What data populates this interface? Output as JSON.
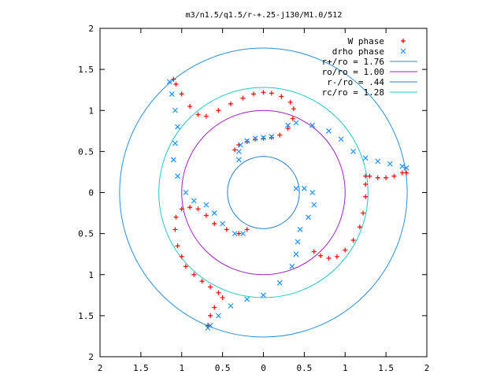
{
  "chart_data": {
    "type": "scatter",
    "title": "m3/n1.5/q1.5/r-+.25-j130/M1.0/512",
    "xlabel": "",
    "ylabel": "",
    "xlim": [
      -2,
      2
    ],
    "ylim": [
      -2,
      2
    ],
    "x_tick_labels": [
      "2",
      "1.5",
      "1",
      "0.5",
      "0",
      "0.5",
      "1",
      "1.5",
      "2"
    ],
    "x_tick_values": [
      -2,
      -1.5,
      -1,
      -0.5,
      0,
      0.5,
      1,
      1.5,
      2
    ],
    "y_tick_labels": [
      "2",
      "1.5",
      "1",
      "0.5",
      "0",
      "0.5",
      "1",
      "1.5",
      "2"
    ],
    "y_tick_values": [
      2,
      1.5,
      1,
      0.5,
      0,
      -0.5,
      -1,
      -1.5,
      -2
    ],
    "grid": false,
    "legend_position": "top-right",
    "series": [
      {
        "name": "W phase",
        "color": "#ff0000",
        "marker": "plus",
        "points": [
          [
            -0.35,
            0.52
          ],
          [
            -0.3,
            0.58
          ],
          [
            -0.2,
            0.62
          ],
          [
            -0.1,
            0.65
          ],
          [
            0.0,
            0.66
          ],
          [
            0.1,
            0.67
          ],
          [
            0.2,
            0.7
          ],
          [
            0.3,
            0.78
          ],
          [
            0.36,
            0.9
          ],
          [
            0.37,
            1.02
          ],
          [
            0.33,
            1.1
          ],
          [
            0.22,
            1.17
          ],
          [
            0.1,
            1.21
          ],
          [
            0.0,
            1.22
          ],
          [
            -0.12,
            1.2
          ],
          [
            -0.25,
            1.15
          ],
          [
            -0.4,
            1.08
          ],
          [
            -0.55,
            1.0
          ],
          [
            -0.7,
            0.93
          ],
          [
            -0.8,
            0.95
          ],
          [
            -0.9,
            1.05
          ],
          [
            -1.0,
            1.2
          ],
          [
            -1.07,
            1.32
          ],
          [
            -1.1,
            1.38
          ],
          [
            0.62,
            -0.72
          ],
          [
            0.7,
            -0.77
          ],
          [
            0.8,
            -0.8
          ],
          [
            0.9,
            -0.78
          ],
          [
            1.0,
            -0.7
          ],
          [
            1.1,
            -0.58
          ],
          [
            1.18,
            -0.42
          ],
          [
            1.22,
            -0.25
          ],
          [
            1.25,
            -0.05
          ],
          [
            1.25,
            0.1
          ],
          [
            1.25,
            0.2
          ],
          [
            1.3,
            0.2
          ],
          [
            1.4,
            0.18
          ],
          [
            1.5,
            0.18
          ],
          [
            1.6,
            0.2
          ],
          [
            1.7,
            0.24
          ],
          [
            1.75,
            0.24
          ],
          [
            -0.2,
            -0.45
          ],
          [
            -0.3,
            -0.5
          ],
          [
            -0.45,
            -0.45
          ],
          [
            -0.6,
            -0.38
          ],
          [
            -0.7,
            -0.28
          ],
          [
            -0.8,
            -0.2
          ],
          [
            -0.9,
            -0.18
          ],
          [
            -1.0,
            -0.2
          ],
          [
            -1.07,
            -0.3
          ],
          [
            -1.08,
            -0.45
          ],
          [
            -1.05,
            -0.65
          ],
          [
            -1.0,
            -0.78
          ],
          [
            -0.95,
            -0.9
          ],
          [
            -0.85,
            -1.0
          ],
          [
            -0.75,
            -1.08
          ],
          [
            -0.65,
            -1.15
          ],
          [
            -0.55,
            -1.22
          ],
          [
            -0.5,
            -1.28
          ],
          [
            -0.6,
            -1.4
          ],
          [
            -0.65,
            -1.5
          ],
          [
            -0.68,
            -1.62
          ]
        ]
      },
      {
        "name": "drho phase",
        "color": "#1e90ff",
        "marker": "cross",
        "points": [
          [
            -0.3,
            0.4
          ],
          [
            -0.3,
            0.5
          ],
          [
            -0.28,
            0.58
          ],
          [
            -0.2,
            0.63
          ],
          [
            -0.1,
            0.66
          ],
          [
            0.0,
            0.67
          ],
          [
            0.1,
            0.68
          ],
          [
            0.3,
            0.82
          ],
          [
            0.4,
            0.85
          ],
          [
            0.6,
            0.82
          ],
          [
            0.8,
            0.75
          ],
          [
            0.95,
            0.65
          ],
          [
            1.1,
            0.5
          ],
          [
            1.25,
            0.42
          ],
          [
            1.4,
            0.38
          ],
          [
            1.55,
            0.35
          ],
          [
            1.7,
            0.32
          ],
          [
            1.75,
            0.3
          ],
          [
            -1.15,
            1.35
          ],
          [
            -1.12,
            1.2
          ],
          [
            -1.08,
            1.0
          ],
          [
            -1.05,
            0.8
          ],
          [
            -1.08,
            0.6
          ],
          [
            -1.1,
            0.4
          ],
          [
            -1.05,
            0.2
          ],
          [
            -0.95,
            0.0
          ],
          [
            -0.85,
            -0.1
          ],
          [
            -0.7,
            -0.15
          ],
          [
            -0.6,
            -0.25
          ],
          [
            -0.5,
            -0.38
          ],
          [
            -0.35,
            -0.5
          ],
          [
            -0.25,
            -0.5
          ],
          [
            0.4,
            0.05
          ],
          [
            0.5,
            0.05
          ],
          [
            0.6,
            0.0
          ],
          [
            0.62,
            -0.15
          ],
          [
            0.55,
            -0.3
          ],
          [
            0.45,
            -0.45
          ],
          [
            0.42,
            -0.6
          ],
          [
            0.4,
            -0.75
          ],
          [
            0.35,
            -0.9
          ],
          [
            0.2,
            -1.1
          ],
          [
            0.0,
            -1.25
          ],
          [
            -0.2,
            -1.3
          ],
          [
            -0.4,
            -1.38
          ],
          [
            -0.55,
            -1.5
          ],
          [
            -0.65,
            -1.62
          ],
          [
            -0.68,
            -1.65
          ]
        ]
      }
    ],
    "circles": [
      {
        "name": "r+/ro = 1.76",
        "radius": 1.76,
        "color": "#2b8fd6"
      },
      {
        "name": "ro/ro = 1.00",
        "radius": 1.0,
        "color": "#9b20b7"
      },
      {
        "name": "r-/ro = .44",
        "radius": 0.44,
        "color": "#2b7fc8"
      },
      {
        "name": "rc/ro = 1.28",
        "radius": 1.28,
        "color": "#22c7c7"
      }
    ]
  }
}
